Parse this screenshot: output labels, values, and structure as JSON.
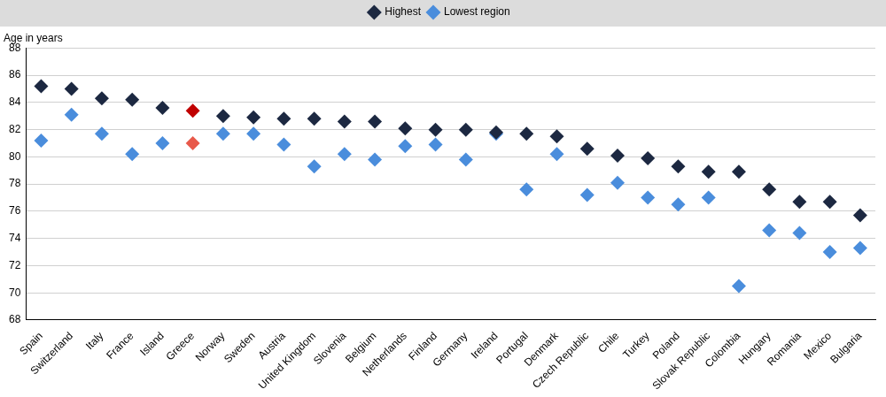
{
  "chart_data": {
    "type": "scatter",
    "y_label": "Age in years",
    "categories": [
      "Spain",
      "Switzerland",
      "Italy",
      "France",
      "Island",
      "Greece",
      "Norway",
      "Sweden",
      "Austria",
      "United Kingdom",
      "Slovenia",
      "Belgium",
      "Netherlands",
      "Finland",
      "Germany",
      "Ireland",
      "Portugal",
      "Denmark",
      "Czech Republic",
      "Chile",
      "Turkey",
      "Poland",
      "Slovak Republic",
      "Colombia",
      "Hungary",
      "Romania",
      "Mexico",
      "Bulgaria"
    ],
    "series": [
      {
        "name": "Highest",
        "color": "#1c2841",
        "marker": "diamond",
        "colors": [
          "#1c2841",
          "#1c2841",
          "#1c2841",
          "#1c2841",
          "#1c2841",
          "#c00000",
          "#1c2841",
          "#1c2841",
          "#1c2841",
          "#1c2841",
          "#1c2841",
          "#1c2841",
          "#1c2841",
          "#1c2841",
          "#1c2841",
          "#1c2841",
          "#1c2841",
          "#1c2841",
          "#1c2841",
          "#1c2841",
          "#1c2841",
          "#1c2841",
          "#1c2841",
          "#1c2841",
          "#1c2841",
          "#1c2841",
          "#1c2841",
          "#1c2841"
        ],
        "values": [
          85.2,
          85.0,
          84.3,
          84.2,
          83.6,
          83.4,
          83.0,
          82.9,
          82.8,
          82.8,
          82.6,
          82.6,
          82.1,
          82.0,
          82.0,
          81.8,
          81.7,
          81.5,
          80.6,
          80.1,
          79.9,
          79.3,
          78.9,
          78.9,
          77.6,
          76.7,
          76.7,
          75.7
        ]
      },
      {
        "name": "Lowest region",
        "color": "#4a8ddc",
        "marker": "diamond",
        "colors": [
          "#4a8ddc",
          "#4a8ddc",
          "#4a8ddc",
          "#4a8ddc",
          "#4a8ddc",
          "#e8594a",
          "#4a8ddc",
          "#4a8ddc",
          "#4a8ddc",
          "#4a8ddc",
          "#4a8ddc",
          "#4a8ddc",
          "#4a8ddc",
          "#4a8ddc",
          "#4a8ddc",
          "#4a8ddc",
          "#4a8ddc",
          "#4a8ddc",
          "#4a8ddc",
          "#4a8ddc",
          "#4a8ddc",
          "#4a8ddc",
          "#4a8ddc",
          "#4a8ddc",
          "#4a8ddc",
          "#4a8ddc",
          "#4a8ddc",
          "#4a8ddc"
        ],
        "values": [
          81.2,
          83.1,
          81.7,
          80.2,
          81.0,
          81.0,
          81.7,
          81.7,
          80.9,
          79.3,
          80.2,
          79.8,
          80.8,
          80.9,
          79.8,
          81.7,
          77.6,
          80.2,
          77.2,
          78.1,
          77.0,
          76.5,
          77.0,
          70.5,
          74.6,
          74.4,
          73.0,
          73.3
        ]
      }
    ],
    "ylim": [
      68,
      88
    ],
    "yticks": [
      68,
      70,
      72,
      74,
      76,
      78,
      80,
      82,
      84,
      86,
      88
    ],
    "grid": true,
    "legend": "top"
  }
}
